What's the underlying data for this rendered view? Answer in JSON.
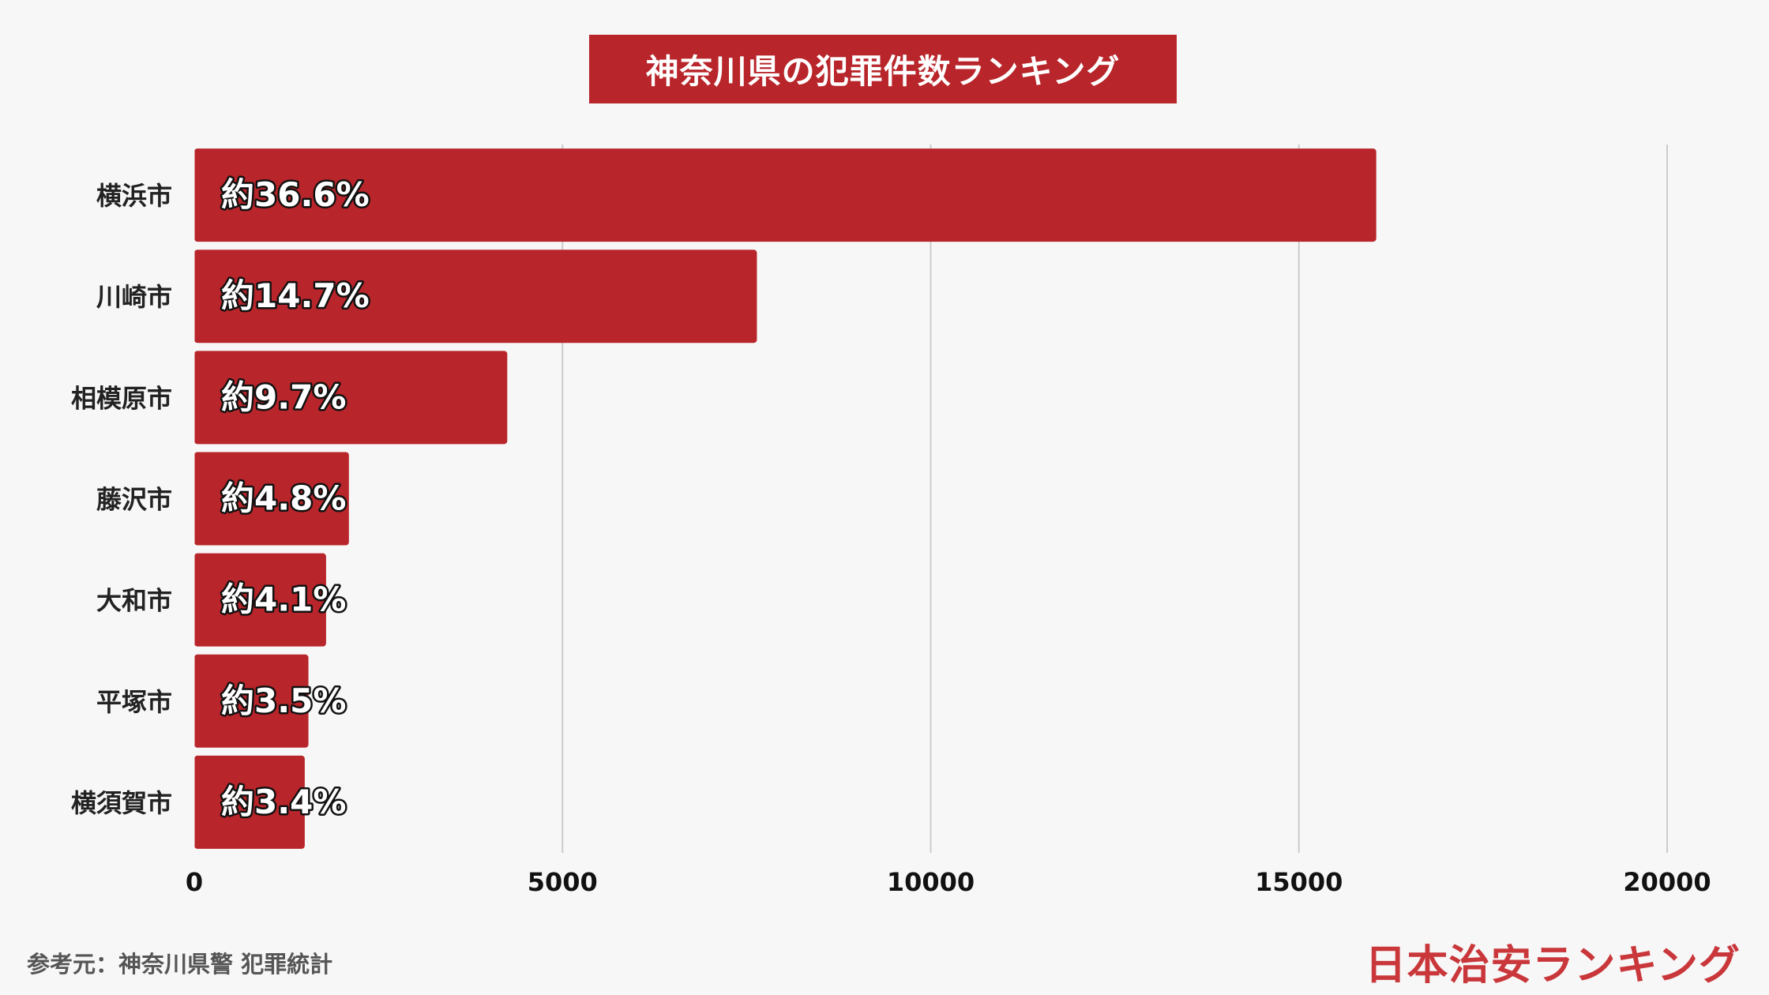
{
  "title": "神奈川県の犯罪件数ランキング",
  "source": "参考元：神奈川県警 犯罪統計",
  "brand": "日本治安ランキング",
  "colors": {
    "bar": "#b8252a",
    "title_bg": "#b8252a",
    "brand": "#c9373b",
    "grid": "#cccccc"
  },
  "chart_data": {
    "type": "bar",
    "orientation": "horizontal",
    "categories": [
      "横浜市",
      "川崎市",
      "相模原市",
      "藤沢市",
      "大和市",
      "平塚市",
      "横須賀市"
    ],
    "values": [
      16050,
      7640,
      4250,
      2100,
      1790,
      1550,
      1500
    ],
    "labels": [
      "約36.6%",
      "約14.7%",
      "約9.7%",
      "約4.8%",
      "約4.1%",
      "約3.5%",
      "約3.4%"
    ],
    "xticks": [
      "0",
      "5000",
      "10000",
      "15000",
      "20000"
    ],
    "xlim": [
      0,
      20000
    ],
    "grid": true,
    "legend": "none"
  }
}
